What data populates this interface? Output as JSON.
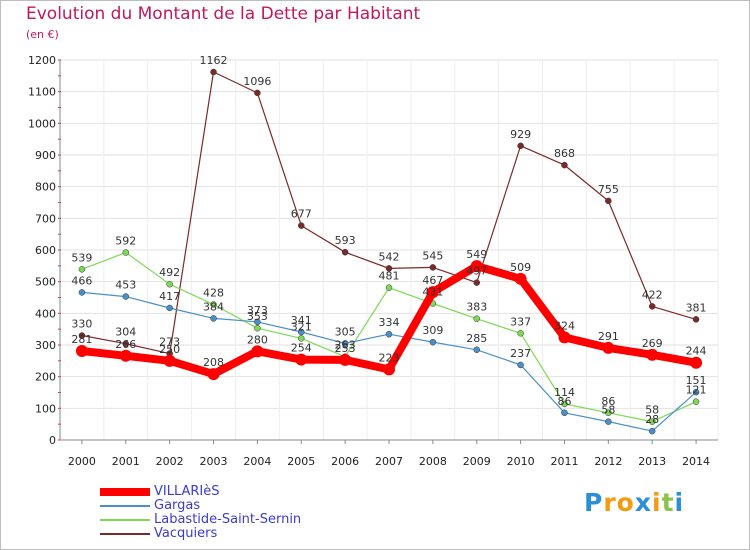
{
  "title": "Evolution du Montant de la Dette par Habitant",
  "unit": "(en €)",
  "logo": {
    "letters": [
      "P",
      "r",
      "o",
      "x",
      "i",
      "t",
      "i"
    ],
    "colors": [
      "#2a8fd6",
      "#f39c12",
      "#f39c12",
      "#2a8fd6",
      "#f39c12",
      "#8bc34a",
      "#2a8fd6"
    ]
  },
  "chart_data": {
    "type": "line",
    "title": "Evolution du Montant de la Dette par Habitant",
    "subtitle": "(en €)",
    "x": [
      "2000",
      "2001",
      "2002",
      "2003",
      "2004",
      "2005",
      "2006",
      "2007",
      "2008",
      "2009",
      "2010",
      "2011",
      "2012",
      "2013",
      "2014"
    ],
    "ylim": [
      0,
      1200
    ],
    "yticks": [
      0,
      100,
      200,
      300,
      400,
      500,
      600,
      700,
      800,
      900,
      1000,
      1100,
      1200
    ],
    "grid": true,
    "legend_position": "bottom-left",
    "series": [
      {
        "name": "Vacquiers",
        "color": "#7b2a2a",
        "values": [
          330,
          304,
          273,
          1162,
          1096,
          677,
          593,
          542,
          545,
          497,
          929,
          868,
          755,
          422,
          381
        ]
      },
      {
        "name": "Labastide-Saint-Sernin",
        "color": "#7ed957",
        "values": [
          539,
          592,
          492,
          428,
          353,
          321,
          263,
          481,
          431,
          383,
          337,
          114,
          86,
          58,
          121
        ]
      },
      {
        "name": "Gargas",
        "color": "#4a90c8",
        "values": [
          466,
          453,
          417,
          384,
          373,
          341,
          305,
          334,
          309,
          285,
          237,
          86,
          58,
          28,
          151
        ]
      },
      {
        "name": "VILLARIèS",
        "color": "#ff0000",
        "values": [
          281,
          266,
          250,
          208,
          280,
          254,
          253,
          223,
          467,
          549,
          509,
          324,
          291,
          269,
          244
        ]
      }
    ],
    "legend_order": [
      "VILLARIèS",
      "Gargas",
      "Labastide-Saint-Sernin",
      "Vacquiers"
    ]
  }
}
